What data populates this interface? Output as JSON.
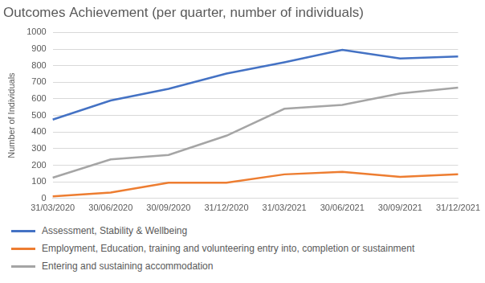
{
  "chart_data": {
    "type": "line",
    "title": "Outcomes Achievement (per quarter, number of individuals)",
    "y_label": "Number of Individuals",
    "categories": [
      "31/03/2020",
      "30/06/2020",
      "30/09/2020",
      "31/12/2020",
      "31/03/2021",
      "30/06/2021",
      "30/09/2021",
      "31/12/2021"
    ],
    "series": [
      {
        "name": "Assessment, Stability & Wellbeing",
        "color": "#4472c4",
        "values": [
          475,
          590,
          660,
          752,
          820,
          895,
          843,
          855
        ]
      },
      {
        "name": "Employment, Education, training and volunteering entry into, completion or sustainment",
        "color": "#ed7d31",
        "values": [
          12,
          35,
          95,
          95,
          145,
          160,
          130,
          145
        ]
      },
      {
        "name": "Entering and sustaining accommodation",
        "color": "#a5a5a5",
        "values": [
          125,
          235,
          262,
          378,
          540,
          563,
          632,
          668
        ]
      }
    ],
    "ylim": [
      0,
      1000
    ],
    "yticks": [
      0,
      100,
      200,
      300,
      400,
      500,
      600,
      700,
      800,
      900,
      1000
    ],
    "grid": true,
    "legend": "bottom"
  }
}
